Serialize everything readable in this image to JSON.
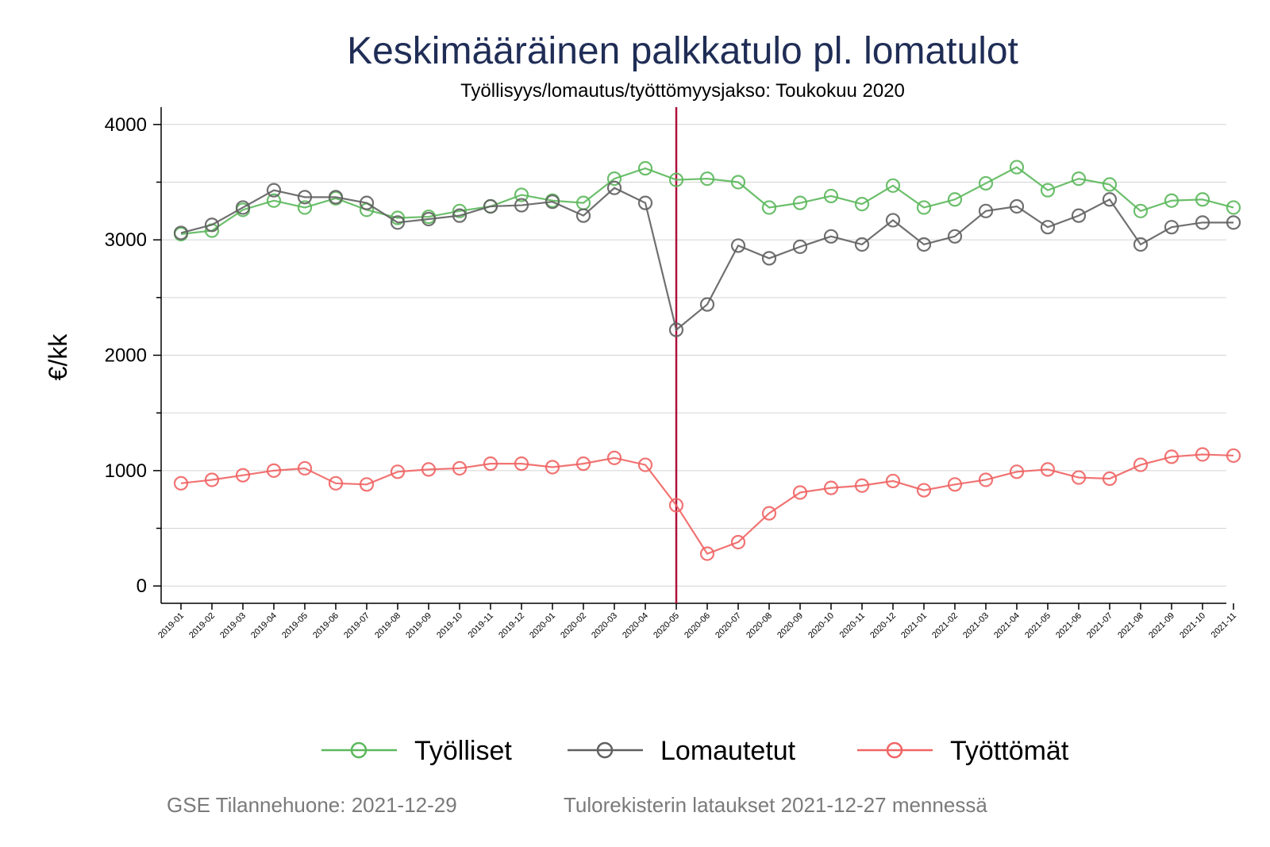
{
  "chart_data": {
    "type": "line",
    "title": "Keskimääräinen palkkatulo pl. lomatulot",
    "subtitle": "Työllisyys/lomautus/työttömyysjakso: Toukokuu 2020",
    "ylabel": "€/kk",
    "xlabel": "",
    "ylim": [
      -150,
      4150
    ],
    "yticks": [
      0,
      1000,
      2000,
      3000,
      4000
    ],
    "grid": true,
    "legend_position": "bottom",
    "reference_line": {
      "x": "2020-05",
      "color": "#b0103a"
    },
    "x": [
      "2019-01",
      "2019-02",
      "2019-03",
      "2019-04",
      "2019-05",
      "2019-06",
      "2019-07",
      "2019-08",
      "2019-09",
      "2019-10",
      "2019-11",
      "2019-12",
      "2020-01",
      "2020-02",
      "2020-03",
      "2020-04",
      "2020-05",
      "2020-06",
      "2020-07",
      "2020-08",
      "2020-09",
      "2020-10",
      "2020-11",
      "2020-12",
      "2021-01",
      "2021-02",
      "2021-03",
      "2021-04",
      "2021-05",
      "2021-06",
      "2021-07",
      "2021-08",
      "2021-09",
      "2021-10",
      "2021-11"
    ],
    "series": [
      {
        "name": "Työlliset",
        "color": "#5cb85c",
        "values": [
          3050,
          3080,
          3260,
          3340,
          3280,
          3360,
          3260,
          3190,
          3200,
          3250,
          3290,
          3390,
          3340,
          3320,
          3530,
          3620,
          3520,
          3530,
          3500,
          3280,
          3320,
          3380,
          3310,
          3470,
          3280,
          3350,
          3490,
          3630,
          3430,
          3530,
          3480,
          3250,
          3340,
          3350,
          3280
        ]
      },
      {
        "name": "Lomautetut",
        "color": "#606060",
        "values": [
          3060,
          3130,
          3280,
          3430,
          3370,
          3370,
          3320,
          3150,
          3180,
          3210,
          3290,
          3300,
          3330,
          3210,
          3450,
          3320,
          2220,
          2440,
          2950,
          2840,
          2940,
          3030,
          2960,
          3170,
          2960,
          3030,
          3250,
          3290,
          3110,
          3210,
          3350,
          2960,
          3110,
          3150,
          3150
        ]
      },
      {
        "name": "Työttömät",
        "color": "#f06464",
        "values": [
          890,
          920,
          960,
          1000,
          1020,
          890,
          880,
          990,
          1010,
          1020,
          1060,
          1060,
          1030,
          1060,
          1110,
          1050,
          700,
          280,
          380,
          630,
          810,
          850,
          870,
          910,
          830,
          880,
          920,
          990,
          1010,
          940,
          930,
          1050,
          1120,
          1140,
          1130
        ]
      }
    ]
  },
  "footer": {
    "source": "GSE Tilannehuone: 2021-12-29",
    "note": "Tulorekisterin lataukset 2021-12-27 mennessä"
  }
}
